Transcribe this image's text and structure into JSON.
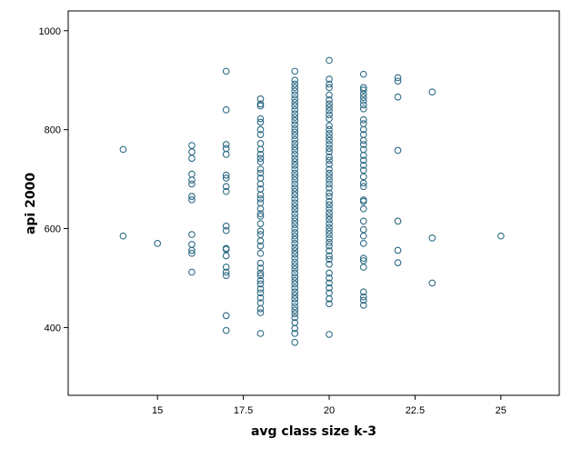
{
  "chart_data": {
    "type": "scatter",
    "title": "",
    "xlabel": "avg class size k-3",
    "ylabel": "api 2000",
    "xlim": [
      12.4,
      26.7
    ],
    "ylim": [
      263,
      1040
    ],
    "x_ticks": [
      15,
      17.5,
      20,
      22.5,
      25
    ],
    "x_tick_labels": [
      "15",
      "17.5",
      "20",
      "22.5",
      "25"
    ],
    "y_ticks": [
      400,
      600,
      800,
      1000
    ],
    "y_tick_labels": [
      "400",
      "600",
      "800",
      "1000"
    ],
    "grid": false,
    "legend": "none",
    "marker": "open circle",
    "marker_color": "#2f6b85",
    "points": [
      {
        "x": 14,
        "y": 760
      },
      {
        "x": 14,
        "y": 585
      },
      {
        "x": 15,
        "y": 570
      },
      {
        "x": 16,
        "y": 768
      },
      {
        "x": 16,
        "y": 755
      },
      {
        "x": 16,
        "y": 742
      },
      {
        "x": 16,
        "y": 710
      },
      {
        "x": 16,
        "y": 698
      },
      {
        "x": 16,
        "y": 690
      },
      {
        "x": 16,
        "y": 665
      },
      {
        "x": 16,
        "y": 658
      },
      {
        "x": 16,
        "y": 588
      },
      {
        "x": 16,
        "y": 568
      },
      {
        "x": 16,
        "y": 556
      },
      {
        "x": 16,
        "y": 550
      },
      {
        "x": 16,
        "y": 512
      },
      {
        "x": 17,
        "y": 918
      },
      {
        "x": 17,
        "y": 840
      },
      {
        "x": 17,
        "y": 770
      },
      {
        "x": 17,
        "y": 762
      },
      {
        "x": 17,
        "y": 750
      },
      {
        "x": 17,
        "y": 708
      },
      {
        "x": 17,
        "y": 702
      },
      {
        "x": 17,
        "y": 685
      },
      {
        "x": 17,
        "y": 675
      },
      {
        "x": 17,
        "y": 605
      },
      {
        "x": 17,
        "y": 596
      },
      {
        "x": 17,
        "y": 560
      },
      {
        "x": 17,
        "y": 558
      },
      {
        "x": 17,
        "y": 545
      },
      {
        "x": 17,
        "y": 522
      },
      {
        "x": 17,
        "y": 512
      },
      {
        "x": 17,
        "y": 505
      },
      {
        "x": 17,
        "y": 424
      },
      {
        "x": 17,
        "y": 394
      },
      {
        "x": 18,
        "y": 862
      },
      {
        "x": 18,
        "y": 852
      },
      {
        "x": 18,
        "y": 848
      },
      {
        "x": 18,
        "y": 822
      },
      {
        "x": 18,
        "y": 815
      },
      {
        "x": 18,
        "y": 800
      },
      {
        "x": 18,
        "y": 790
      },
      {
        "x": 18,
        "y": 772
      },
      {
        "x": 18,
        "y": 760
      },
      {
        "x": 18,
        "y": 750
      },
      {
        "x": 18,
        "y": 742
      },
      {
        "x": 18,
        "y": 735
      },
      {
        "x": 18,
        "y": 720
      },
      {
        "x": 18,
        "y": 712
      },
      {
        "x": 18,
        "y": 702
      },
      {
        "x": 18,
        "y": 690
      },
      {
        "x": 18,
        "y": 680
      },
      {
        "x": 18,
        "y": 668
      },
      {
        "x": 18,
        "y": 660
      },
      {
        "x": 18,
        "y": 652
      },
      {
        "x": 18,
        "y": 640
      },
      {
        "x": 18,
        "y": 630
      },
      {
        "x": 18,
        "y": 625
      },
      {
        "x": 18,
        "y": 610
      },
      {
        "x": 18,
        "y": 595
      },
      {
        "x": 18,
        "y": 588
      },
      {
        "x": 18,
        "y": 575
      },
      {
        "x": 18,
        "y": 565
      },
      {
        "x": 18,
        "y": 550
      },
      {
        "x": 18,
        "y": 530
      },
      {
        "x": 18,
        "y": 520
      },
      {
        "x": 18,
        "y": 510
      },
      {
        "x": 18,
        "y": 505
      },
      {
        "x": 18,
        "y": 495
      },
      {
        "x": 18,
        "y": 488
      },
      {
        "x": 18,
        "y": 478
      },
      {
        "x": 18,
        "y": 470
      },
      {
        "x": 18,
        "y": 460
      },
      {
        "x": 18,
        "y": 450
      },
      {
        "x": 18,
        "y": 438
      },
      {
        "x": 18,
        "y": 430
      },
      {
        "x": 18,
        "y": 388
      },
      {
        "x": 19,
        "y": 918
      },
      {
        "x": 19,
        "y": 900
      },
      {
        "x": 19,
        "y": 892
      },
      {
        "x": 19,
        "y": 885
      },
      {
        "x": 19,
        "y": 878
      },
      {
        "x": 19,
        "y": 870
      },
      {
        "x": 19,
        "y": 862
      },
      {
        "x": 19,
        "y": 855
      },
      {
        "x": 19,
        "y": 848
      },
      {
        "x": 19,
        "y": 840
      },
      {
        "x": 19,
        "y": 832
      },
      {
        "x": 19,
        "y": 825
      },
      {
        "x": 19,
        "y": 818
      },
      {
        "x": 19,
        "y": 810
      },
      {
        "x": 19,
        "y": 802
      },
      {
        "x": 19,
        "y": 795
      },
      {
        "x": 19,
        "y": 788
      },
      {
        "x": 19,
        "y": 780
      },
      {
        "x": 19,
        "y": 772
      },
      {
        "x": 19,
        "y": 765
      },
      {
        "x": 19,
        "y": 758
      },
      {
        "x": 19,
        "y": 750
      },
      {
        "x": 19,
        "y": 742
      },
      {
        "x": 19,
        "y": 735
      },
      {
        "x": 19,
        "y": 728
      },
      {
        "x": 19,
        "y": 720
      },
      {
        "x": 19,
        "y": 712
      },
      {
        "x": 19,
        "y": 705
      },
      {
        "x": 19,
        "y": 698
      },
      {
        "x": 19,
        "y": 690
      },
      {
        "x": 19,
        "y": 682
      },
      {
        "x": 19,
        "y": 675
      },
      {
        "x": 19,
        "y": 668
      },
      {
        "x": 19,
        "y": 660
      },
      {
        "x": 19,
        "y": 652
      },
      {
        "x": 19,
        "y": 645
      },
      {
        "x": 19,
        "y": 638
      },
      {
        "x": 19,
        "y": 630
      },
      {
        "x": 19,
        "y": 622
      },
      {
        "x": 19,
        "y": 615
      },
      {
        "x": 19,
        "y": 608
      },
      {
        "x": 19,
        "y": 600
      },
      {
        "x": 19,
        "y": 592
      },
      {
        "x": 19,
        "y": 585
      },
      {
        "x": 19,
        "y": 578
      },
      {
        "x": 19,
        "y": 570
      },
      {
        "x": 19,
        "y": 562
      },
      {
        "x": 19,
        "y": 555
      },
      {
        "x": 19,
        "y": 548
      },
      {
        "x": 19,
        "y": 540
      },
      {
        "x": 19,
        "y": 532
      },
      {
        "x": 19,
        "y": 525
      },
      {
        "x": 19,
        "y": 518
      },
      {
        "x": 19,
        "y": 510
      },
      {
        "x": 19,
        "y": 502
      },
      {
        "x": 19,
        "y": 495
      },
      {
        "x": 19,
        "y": 488
      },
      {
        "x": 19,
        "y": 480
      },
      {
        "x": 19,
        "y": 472
      },
      {
        "x": 19,
        "y": 465
      },
      {
        "x": 19,
        "y": 458
      },
      {
        "x": 19,
        "y": 450
      },
      {
        "x": 19,
        "y": 442
      },
      {
        "x": 19,
        "y": 435
      },
      {
        "x": 19,
        "y": 428
      },
      {
        "x": 19,
        "y": 420
      },
      {
        "x": 19,
        "y": 410
      },
      {
        "x": 19,
        "y": 398
      },
      {
        "x": 19,
        "y": 388
      },
      {
        "x": 19,
        "y": 370
      },
      {
        "x": 20,
        "y": 940
      },
      {
        "x": 20,
        "y": 902
      },
      {
        "x": 20,
        "y": 892
      },
      {
        "x": 20,
        "y": 885
      },
      {
        "x": 20,
        "y": 870
      },
      {
        "x": 20,
        "y": 860
      },
      {
        "x": 20,
        "y": 852
      },
      {
        "x": 20,
        "y": 845
      },
      {
        "x": 20,
        "y": 838
      },
      {
        "x": 20,
        "y": 830
      },
      {
        "x": 20,
        "y": 822
      },
      {
        "x": 20,
        "y": 808
      },
      {
        "x": 20,
        "y": 800
      },
      {
        "x": 20,
        "y": 792
      },
      {
        "x": 20,
        "y": 785
      },
      {
        "x": 20,
        "y": 778
      },
      {
        "x": 20,
        "y": 770
      },
      {
        "x": 20,
        "y": 762
      },
      {
        "x": 20,
        "y": 755
      },
      {
        "x": 20,
        "y": 745
      },
      {
        "x": 20,
        "y": 738
      },
      {
        "x": 20,
        "y": 730
      },
      {
        "x": 20,
        "y": 720
      },
      {
        "x": 20,
        "y": 712
      },
      {
        "x": 20,
        "y": 705
      },
      {
        "x": 20,
        "y": 698
      },
      {
        "x": 20,
        "y": 690
      },
      {
        "x": 20,
        "y": 682
      },
      {
        "x": 20,
        "y": 672
      },
      {
        "x": 20,
        "y": 665
      },
      {
        "x": 20,
        "y": 655
      },
      {
        "x": 20,
        "y": 648
      },
      {
        "x": 20,
        "y": 640
      },
      {
        "x": 20,
        "y": 632
      },
      {
        "x": 20,
        "y": 625
      },
      {
        "x": 20,
        "y": 618
      },
      {
        "x": 20,
        "y": 610
      },
      {
        "x": 20,
        "y": 602
      },
      {
        "x": 20,
        "y": 595
      },
      {
        "x": 20,
        "y": 588
      },
      {
        "x": 20,
        "y": 580
      },
      {
        "x": 20,
        "y": 572
      },
      {
        "x": 20,
        "y": 565
      },
      {
        "x": 20,
        "y": 555
      },
      {
        "x": 20,
        "y": 545
      },
      {
        "x": 20,
        "y": 538
      },
      {
        "x": 20,
        "y": 528
      },
      {
        "x": 20,
        "y": 510
      },
      {
        "x": 20,
        "y": 500
      },
      {
        "x": 20,
        "y": 490
      },
      {
        "x": 20,
        "y": 480
      },
      {
        "x": 20,
        "y": 470
      },
      {
        "x": 20,
        "y": 458
      },
      {
        "x": 20,
        "y": 448
      },
      {
        "x": 20,
        "y": 386
      },
      {
        "x": 21,
        "y": 912
      },
      {
        "x": 21,
        "y": 885
      },
      {
        "x": 21,
        "y": 880
      },
      {
        "x": 21,
        "y": 872
      },
      {
        "x": 21,
        "y": 865
      },
      {
        "x": 21,
        "y": 858
      },
      {
        "x": 21,
        "y": 850
      },
      {
        "x": 21,
        "y": 842
      },
      {
        "x": 21,
        "y": 820
      },
      {
        "x": 21,
        "y": 812
      },
      {
        "x": 21,
        "y": 800
      },
      {
        "x": 21,
        "y": 790
      },
      {
        "x": 21,
        "y": 778
      },
      {
        "x": 21,
        "y": 770
      },
      {
        "x": 21,
        "y": 760
      },
      {
        "x": 21,
        "y": 748
      },
      {
        "x": 21,
        "y": 738
      },
      {
        "x": 21,
        "y": 728
      },
      {
        "x": 21,
        "y": 718
      },
      {
        "x": 21,
        "y": 705
      },
      {
        "x": 21,
        "y": 692
      },
      {
        "x": 21,
        "y": 685
      },
      {
        "x": 21,
        "y": 658
      },
      {
        "x": 21,
        "y": 655
      },
      {
        "x": 21,
        "y": 640
      },
      {
        "x": 21,
        "y": 615
      },
      {
        "x": 21,
        "y": 598
      },
      {
        "x": 21,
        "y": 585
      },
      {
        "x": 21,
        "y": 570
      },
      {
        "x": 21,
        "y": 540
      },
      {
        "x": 21,
        "y": 535
      },
      {
        "x": 21,
        "y": 522
      },
      {
        "x": 21,
        "y": 472
      },
      {
        "x": 21,
        "y": 462
      },
      {
        "x": 21,
        "y": 455
      },
      {
        "x": 21,
        "y": 445
      },
      {
        "x": 22,
        "y": 905
      },
      {
        "x": 22,
        "y": 898
      },
      {
        "x": 22,
        "y": 866
      },
      {
        "x": 22,
        "y": 758
      },
      {
        "x": 22,
        "y": 615
      },
      {
        "x": 22,
        "y": 556
      },
      {
        "x": 22,
        "y": 531
      },
      {
        "x": 23,
        "y": 876
      },
      {
        "x": 23,
        "y": 581
      },
      {
        "x": 23,
        "y": 490
      },
      {
        "x": 25,
        "y": 585
      }
    ]
  }
}
